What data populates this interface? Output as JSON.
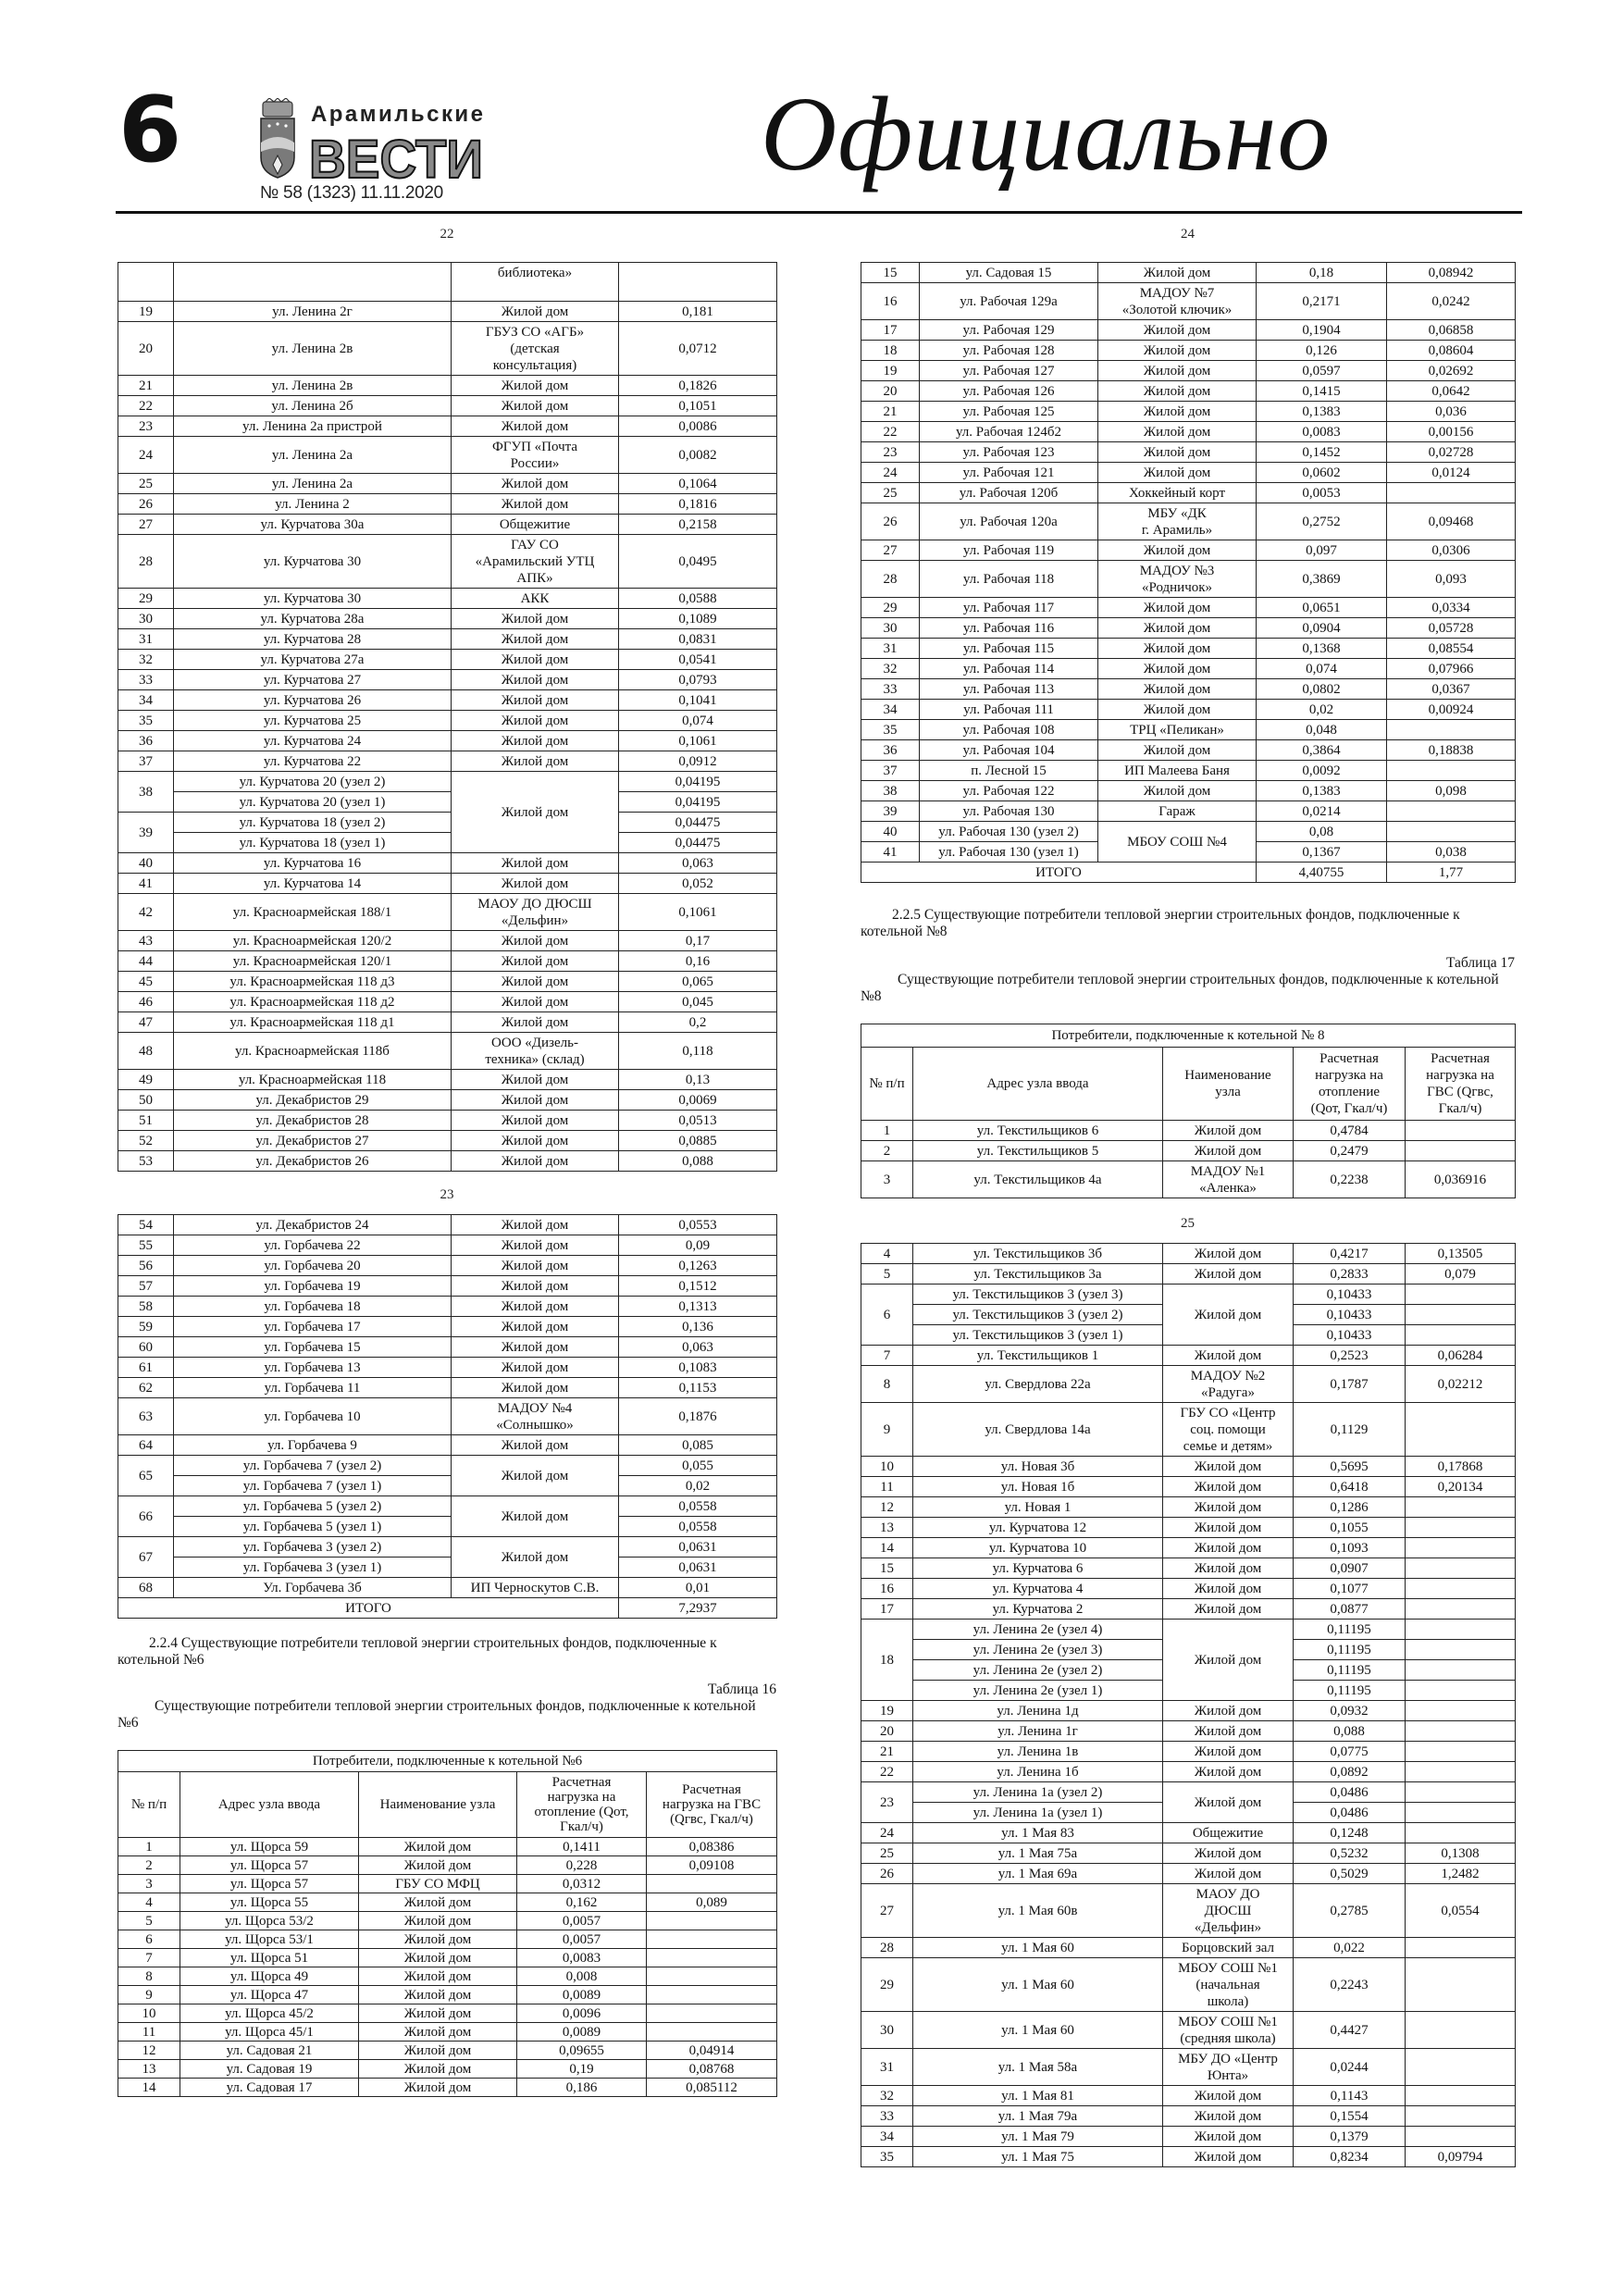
{
  "header": {
    "page_number": "6",
    "logo": {
      "line1": "Арамильские",
      "line2": "ВЕСТИ"
    },
    "issue": "№ 58 (1323) 11.11.2020",
    "section": "Официально"
  },
  "doc_pages": {
    "p22": "22",
    "p23": "23",
    "p24": "24",
    "p25": "25"
  },
  "table_a": {
    "rows": [
      [
        "",
        "",
        "библиотека»",
        ""
      ],
      [
        "19",
        "ул. Ленина 2г",
        "Жилой дом",
        "0,181"
      ],
      [
        "20",
        "ул. Ленина 2в",
        "ГБУЗ СО «АГБ»\n(детская\nконсультация)",
        "0,0712"
      ],
      [
        "21",
        "ул. Ленина 2в",
        "Жилой дом",
        "0,1826"
      ],
      [
        "22",
        "ул. Ленина 2б",
        "Жилой дом",
        "0,1051"
      ],
      [
        "23",
        "ул. Ленина 2а пристрой",
        "Жилой дом",
        "0,0086"
      ],
      [
        "24",
        "ул. Ленина 2а",
        "ФГУП «Почта\nРоссии»",
        "0,0082"
      ],
      [
        "25",
        "ул. Ленина 2а",
        "Жилой дом",
        "0,1064"
      ],
      [
        "26",
        "ул. Ленина 2",
        "Жилой дом",
        "0,1816"
      ],
      [
        "27",
        "ул. Курчатова 30а",
        "Общежитие",
        "0,2158"
      ],
      [
        "28",
        "ул. Курчатова 30",
        "ГАУ СО\n«Арамильский УТЦ\nАПК»",
        "0,0495"
      ],
      [
        "29",
        "ул. Курчатова 30",
        "АКК",
        "0,0588"
      ],
      [
        "30",
        "ул. Курчатова 28а",
        "Жилой дом",
        "0,1089"
      ],
      [
        "31",
        "ул. Курчатова 28",
        "Жилой дом",
        "0,0831"
      ],
      [
        "32",
        "ул. Курчатова 27а",
        "Жилой дом",
        "0,0541"
      ],
      [
        "33",
        "ул. Курчатова 27",
        "Жилой дом",
        "0,0793"
      ],
      [
        "34",
        "ул. Курчатова 26",
        "Жилой дом",
        "0,1041"
      ],
      [
        "35",
        "ул. Курчатова 25",
        "Жилой дом",
        "0,074"
      ],
      [
        "36",
        "ул. Курчатова 24",
        "Жилой дом",
        "0,1061"
      ],
      [
        "37",
        "ул. Курчатова 22",
        "Жилой дом",
        "0,0912"
      ],
      {
        "name": "Жилой дом",
        "groups": [
          {
            "n": "38",
            "nodes": [
              [
                "ул. Курчатова 20 (узел 2)",
                "0,04195"
              ],
              [
                "ул. Курчатова 20 (узел 1)",
                "0,04195"
              ]
            ]
          },
          {
            "n": "39",
            "nodes": [
              [
                "ул. Курчатова 18 (узел 2)",
                "0,04475"
              ],
              [
                "ул. Курчатова 18 (узел 1)",
                "0,04475"
              ]
            ]
          }
        ]
      },
      [
        "40",
        "ул. Курчатова 16",
        "Жилой дом",
        "0,063"
      ],
      [
        "41",
        "ул. Курчатова 14",
        "Жилой дом",
        "0,052"
      ],
      [
        "42",
        "ул. Красноармейская 188/1",
        "МАОУ ДО ДЮСШ\n«Дельфин»",
        "0,1061"
      ],
      [
        "43",
        "ул. Красноармейская 120/2",
        "Жилой дом",
        "0,17"
      ],
      [
        "44",
        "ул. Красноармейская 120/1",
        "Жилой дом",
        "0,16"
      ],
      [
        "45",
        "ул. Красноармейская 118 д3",
        "Жилой дом",
        "0,065"
      ],
      [
        "46",
        "ул. Красноармейская 118 д2",
        "Жилой дом",
        "0,045"
      ],
      [
        "47",
        "ул. Красноармейская 118 д1",
        "Жилой дом",
        "0,2"
      ],
      [
        "48",
        "ул. Красноармейская 118б",
        "ООО «Дизель-\nтехника» (склад)",
        "0,118"
      ],
      [
        "49",
        "ул. Красноармейская 118",
        "Жилой дом",
        "0,13"
      ],
      [
        "50",
        "ул. Декабристов 29",
        "Жилой дом",
        "0,0069"
      ],
      [
        "51",
        "ул. Декабристов 28",
        "Жилой дом",
        "0,0513"
      ],
      [
        "52",
        "ул. Декабристов 27",
        "Жилой дом",
        "0,0885"
      ],
      [
        "53",
        "ул. Декабристов 26",
        "Жилой дом",
        "0,088"
      ]
    ]
  },
  "table_b": {
    "rows": [
      [
        "54",
        "ул. Декабристов 24",
        "Жилой дом",
        "0,0553"
      ],
      [
        "55",
        "ул. Горбачева 22",
        "Жилой дом",
        "0,09"
      ],
      [
        "56",
        "ул. Горбачева 20",
        "Жилой дом",
        "0,1263"
      ],
      [
        "57",
        "ул. Горбачева 19",
        "Жилой дом",
        "0,1512"
      ],
      [
        "58",
        "ул. Горбачева 18",
        "Жилой дом",
        "0,1313"
      ],
      [
        "59",
        "ул. Горбачева 17",
        "Жилой дом",
        "0,136"
      ],
      [
        "60",
        "ул. Горбачева 15",
        "Жилой дом",
        "0,063"
      ],
      [
        "61",
        "ул. Горбачева 13",
        "Жилой дом",
        "0,1083"
      ],
      [
        "62",
        "ул. Горбачева 11",
        "Жилой дом",
        "0,1153"
      ],
      [
        "63",
        "ул. Горбачева 10",
        "МАДОУ №4\n«Солнышко»",
        "0,1876"
      ],
      [
        "64",
        "ул. Горбачева 9",
        "Жилой дом",
        "0,085"
      ],
      {
        "n": "65",
        "name": "Жилой дом",
        "nodes": [
          [
            "ул. Горбачева 7 (узел 2)",
            "0,055"
          ],
          [
            "ул. Горбачева 7 (узел 1)",
            "0,02"
          ]
        ]
      },
      {
        "n": "66",
        "name": "Жилой дом",
        "nodes": [
          [
            "ул. Горбачева 5 (узел 2)",
            "0,0558"
          ],
          [
            "ул. Горбачева 5 (узел 1)",
            "0,0558"
          ]
        ]
      },
      {
        "n": "67",
        "name": "Жилой дом",
        "nodes": [
          [
            "ул. Горбачева 3 (узел 2)",
            "0,0631"
          ],
          [
            "ул. Горбачева 3 (узел 1)",
            "0,0631"
          ]
        ]
      },
      [
        "68",
        "Ул. Горбачева 3б",
        "ИП Черноскутов С.В.",
        "0,01"
      ]
    ],
    "total": {
      "label": "ИТОГО",
      "q": "7,2937"
    }
  },
  "section_224": {
    "text": "2.2.4 Существующие потребители тепловой энергии строительных фондов, подключенные к котельной №6",
    "table_label": "Таблица 16",
    "caption": "Существующие потребители тепловой энергии строительных фондов, подключенные к котельной №6"
  },
  "table_16": {
    "title": "Потребители, подключенные к котельной №6",
    "headers": [
      "№ п/п",
      "Адрес узла ввода",
      "Наименование узла",
      "Расчетная\nнагрузка на\nотопление (Qот,\nГкал/ч)",
      "Расчетная\nнагрузка на ГВС\n(Qгвс, Гкал/ч)"
    ],
    "rows": [
      [
        "1",
        "ул. Щорса 59",
        "Жилой дом",
        "0,1411",
        "0,08386"
      ],
      [
        "2",
        "ул. Щорса 57",
        "Жилой дом",
        "0,228",
        "0,09108"
      ],
      [
        "3",
        "ул. Щорса 57",
        "ГБУ СО МФЦ",
        "0,0312",
        ""
      ],
      [
        "4",
        "ул. Щорса 55",
        "Жилой дом",
        "0,162",
        "0,089"
      ],
      [
        "5",
        "ул. Щорса 53/2",
        "Жилой дом",
        "0,0057",
        ""
      ],
      [
        "6",
        "ул. Щорса 53/1",
        "Жилой дом",
        "0,0057",
        ""
      ],
      [
        "7",
        "ул. Щорса 51",
        "Жилой дом",
        "0,0083",
        ""
      ],
      [
        "8",
        "ул. Щорса 49",
        "Жилой дом",
        "0,008",
        ""
      ],
      [
        "9",
        "ул. Щорса 47",
        "Жилой дом",
        "0,0089",
        ""
      ],
      [
        "10",
        "ул. Щорса 45/2",
        "Жилой дом",
        "0,0096",
        ""
      ],
      [
        "11",
        "ул. Щорса 45/1",
        "Жилой дом",
        "0,0089",
        ""
      ],
      [
        "12",
        "ул. Садовая 21",
        "Жилой дом",
        "0,09655",
        "0,04914"
      ],
      [
        "13",
        "ул. Садовая 19",
        "Жилой дом",
        "0,19",
        "0,08768"
      ],
      [
        "14",
        "ул. Садовая 17",
        "Жилой дом",
        "0,186",
        "0,085112"
      ]
    ]
  },
  "table_c": {
    "rows": [
      [
        "15",
        "ул. Садовая 15",
        "Жилой дом",
        "0,18",
        "0,08942"
      ],
      [
        "16",
        "ул. Рабочая 129а",
        "МАДОУ №7\n«Золотой ключик»",
        "0,2171",
        "0,0242"
      ],
      [
        "17",
        "ул. Рабочая 129",
        "Жилой дом",
        "0,1904",
        "0,06858"
      ],
      [
        "18",
        "ул. Рабочая 128",
        "Жилой дом",
        "0,126",
        "0,08604"
      ],
      [
        "19",
        "ул. Рабочая 127",
        "Жилой дом",
        "0,0597",
        "0,02692"
      ],
      [
        "20",
        "ул. Рабочая 126",
        "Жилой дом",
        "0,1415",
        "0,0642"
      ],
      [
        "21",
        "ул. Рабочая 125",
        "Жилой дом",
        "0,1383",
        "0,036"
      ],
      [
        "22",
        "ул. Рабочая 124б2",
        "Жилой дом",
        "0,0083",
        "0,00156"
      ],
      [
        "23",
        "ул. Рабочая 123",
        "Жилой дом",
        "0,1452",
        "0,02728"
      ],
      [
        "24",
        "ул. Рабочая 121",
        "Жилой дом",
        "0,0602",
        "0,0124"
      ],
      [
        "25",
        "ул. Рабочая 120б",
        "Хоккейный корт",
        "0,0053",
        ""
      ],
      [
        "26",
        "ул. Рабочая 120а",
        "МБУ «ДК\nг. Арамиль»",
        "0,2752",
        "0,09468"
      ],
      [
        "27",
        "ул. Рабочая 119",
        "Жилой дом",
        "0,097",
        "0,0306"
      ],
      [
        "28",
        "ул. Рабочая 118",
        "МАДОУ №3\n«Родничок»",
        "0,3869",
        "0,093"
      ],
      [
        "29",
        "ул. Рабочая 117",
        "Жилой дом",
        "0,0651",
        "0,0334"
      ],
      [
        "30",
        "ул. Рабочая 116",
        "Жилой дом",
        "0,0904",
        "0,05728"
      ],
      [
        "31",
        "ул. Рабочая 115",
        "Жилой дом",
        "0,1368",
        "0,08554"
      ],
      [
        "32",
        "ул. Рабочая 114",
        "Жилой дом",
        "0,074",
        "0,07966"
      ],
      [
        "33",
        "ул. Рабочая 113",
        "Жилой дом",
        "0,0802",
        "0,0367"
      ],
      [
        "34",
        "ул. Рабочая 111",
        "Жилой дом",
        "0,02",
        "0,00924"
      ],
      [
        "35",
        "ул. Рабочая 108",
        "ТРЦ «Пеликан»",
        "0,048",
        ""
      ],
      [
        "36",
        "ул. Рабочая 104",
        "Жилой дом",
        "0,3864",
        "0,18838"
      ],
      [
        "37",
        "п. Лесной 15",
        "ИП Малеева Баня",
        "0,0092",
        ""
      ],
      [
        "38",
        "ул. Рабочая 122",
        "Жилой дом",
        "0,1383",
        "0,098"
      ],
      [
        "39",
        "ул. Рабочая 130",
        "Гараж",
        "0,0214",
        ""
      ],
      {
        "name": "МБОУ СОШ №4",
        "groups": [
          {
            "n": "40",
            "nodes": [
              [
                "ул. Рабочая 130 (узел 2)",
                "0,08",
                ""
              ]
            ]
          },
          {
            "n": "41",
            "nodes": [
              [
                "ул. Рабочая 130 (узел 1)",
                "0,1367",
                "0,038"
              ]
            ]
          }
        ]
      }
    ],
    "total": {
      "label": "ИТОГО",
      "q": "4,40755",
      "gvs": "1,77"
    }
  },
  "section_225": {
    "text": "2.2.5 Существующие потребители тепловой энергии строительных фондов, подключенные к котельной №8",
    "table_label": "Таблица 17",
    "caption": "Существующие потребители тепловой энергии строительных фондов, подключенные к котельной №8"
  },
  "table_17": {
    "title": "Потребители, подключенные к котельной № 8",
    "headers": [
      "№ п/п",
      "Адрес узла ввода",
      "Наименование\nузла",
      "Расчетная\nнагрузка на\nотопление\n(Qот, Гкал/ч)",
      "Расчетная\nнагрузка на\nГВС (Qгвс,\nГкал/ч)"
    ],
    "rows": [
      [
        "1",
        "ул. Текстильщиков 6",
        "Жилой дом",
        "0,4784",
        ""
      ],
      [
        "2",
        "ул. Текстильщиков 5",
        "Жилой дом",
        "0,2479",
        ""
      ],
      [
        "3",
        "ул. Текстильщиков 4а",
        "МАДОУ №1\n«Аленка»",
        "0,2238",
        "0,036916"
      ]
    ]
  },
  "table_d": {
    "rows": [
      [
        "4",
        "ул. Текстильщиков 3б",
        "Жилой дом",
        "0,4217",
        "0,13505"
      ],
      [
        "5",
        "ул. Текстильщиков 3а",
        "Жилой дом",
        "0,2833",
        "0,079"
      ],
      {
        "n": "6",
        "name": "Жилой дом",
        "nodes": [
          [
            "ул. Текстильщиков 3 (узел 3)",
            "0,10433",
            ""
          ],
          [
            "ул. Текстильщиков 3 (узел 2)",
            "0,10433",
            ""
          ],
          [
            "ул. Текстильщиков 3 (узел 1)",
            "0,10433",
            ""
          ]
        ]
      },
      [
        "7",
        "ул. Текстильщиков 1",
        "Жилой дом",
        "0,2523",
        "0,06284"
      ],
      [
        "8",
        "ул. Свердлова 22а",
        "МАДОУ №2\n«Радуга»",
        "0,1787",
        "0,02212"
      ],
      [
        "9",
        "ул. Свердлова 14а",
        "ГБУ СО «Центр\nсоц. помощи\nсемье и детям»",
        "0,1129",
        ""
      ],
      [
        "10",
        "ул. Новая 3б",
        "Жилой дом",
        "0,5695",
        "0,17868"
      ],
      [
        "11",
        "ул. Новая 1б",
        "Жилой дом",
        "0,6418",
        "0,20134"
      ],
      [
        "12",
        "ул. Новая 1",
        "Жилой дом",
        "0,1286",
        ""
      ],
      [
        "13",
        "ул. Курчатова 12",
        "Жилой дом",
        "0,1055",
        ""
      ],
      [
        "14",
        "ул. Курчатова 10",
        "Жилой дом",
        "0,1093",
        ""
      ],
      [
        "15",
        "ул. Курчатова 6",
        "Жилой дом",
        "0,0907",
        ""
      ],
      [
        "16",
        "ул. Курчатова 4",
        "Жилой дом",
        "0,1077",
        ""
      ],
      [
        "17",
        "ул. Курчатова 2",
        "Жилой дом",
        "0,0877",
        ""
      ],
      {
        "n": "18",
        "name": "Жилой дом",
        "nodes": [
          [
            "ул. Ленина 2е (узел 4)",
            "0,11195",
            ""
          ],
          [
            "ул. Ленина 2е (узел 3)",
            "0,11195",
            ""
          ],
          [
            "ул. Ленина 2е (узел 2)",
            "0,11195",
            ""
          ],
          [
            "ул. Ленина 2е (узел 1)",
            "0,11195",
            ""
          ]
        ]
      },
      [
        "19",
        "ул. Ленина 1д",
        "Жилой дом",
        "0,0932",
        ""
      ],
      [
        "20",
        "ул. Ленина 1г",
        "Жилой дом",
        "0,088",
        ""
      ],
      [
        "21",
        "ул. Ленина 1в",
        "Жилой дом",
        "0,0775",
        ""
      ],
      [
        "22",
        "ул. Ленина 1б",
        "Жилой дом",
        "0,0892",
        ""
      ],
      {
        "n": "23",
        "name": "Жилой дом",
        "nodes": [
          [
            "ул. Ленина 1а (узел 2)",
            "0,0486",
            ""
          ],
          [
            "ул. Ленина 1а (узел 1)",
            "0,0486",
            ""
          ]
        ]
      },
      [
        "24",
        "ул. 1 Мая 83",
        "Общежитие",
        "0,1248",
        ""
      ],
      [
        "25",
        "ул. 1 Мая 75а",
        "Жилой дом",
        "0,5232",
        "0,1308"
      ],
      [
        "26",
        "ул. 1 Мая 69а",
        "Жилой дом",
        "0,5029",
        "1,2482"
      ],
      [
        "27",
        "ул. 1 Мая 60в",
        "МАОУ ДО\nДЮСШ\n«Дельфин»",
        "0,2785",
        "0,0554"
      ],
      [
        "28",
        "ул. 1 Мая 60",
        "Борцовский зал",
        "0,022",
        ""
      ],
      [
        "29",
        "ул. 1 Мая 60",
        "МБОУ СОШ №1\n(начальная\nшкола)",
        "0,2243",
        ""
      ],
      [
        "30",
        "ул. 1 Мая 60",
        "МБОУ СОШ №1\n(средняя школа)",
        "0,4427",
        ""
      ],
      [
        "31",
        "ул. 1 Мая 58а",
        "МБУ ДО «Центр\nЮнта»",
        "0,0244",
        ""
      ],
      [
        "32",
        "ул. 1 Мая 81",
        "Жилой дом",
        "0,1143",
        ""
      ],
      [
        "33",
        "ул. 1 Мая  79а",
        "Жилой дом",
        "0,1554",
        ""
      ],
      [
        "34",
        "ул. 1 Мая  79",
        "Жилой дом",
        "0,1379",
        ""
      ],
      [
        "35",
        "ул. 1 Мая  75",
        "Жилой дом",
        "0,8234",
        "0,09794"
      ]
    ]
  }
}
